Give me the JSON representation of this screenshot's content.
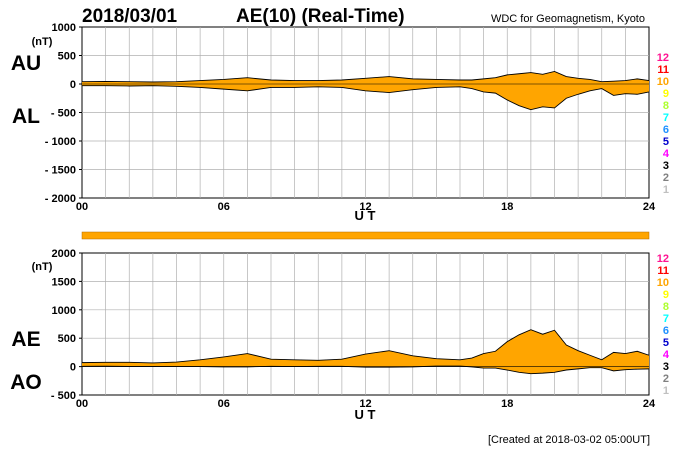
{
  "header": {
    "date": "2018/03/01",
    "title": "AE(10) (Real-Time)",
    "source": "WDC for Geomagnetism, Kyoto"
  },
  "footer": {
    "created": "[Created at 2018-03-02 05:00UT]"
  },
  "chart_data": [
    {
      "type": "area",
      "id": "au_al",
      "labels": {
        "upper": "AU",
        "lower": "AL"
      },
      "unit": "(nT)",
      "xlabel": "U T",
      "xlim": [
        0,
        24
      ],
      "ylim": [
        -2000,
        1000
      ],
      "xticks": [
        0,
        6,
        12,
        18,
        24
      ],
      "xtick_labels": [
        "00",
        "06",
        "12",
        "18",
        "24"
      ],
      "yticks": [
        1000,
        500,
        0,
        -500,
        -1000,
        -1500,
        -2000
      ],
      "ytick_labels": [
        "1000",
        "500",
        "0",
        "- 500",
        "- 1000",
        "- 1500",
        "- 2000"
      ],
      "fill_color": "#ffa500",
      "x": [
        0,
        1,
        2,
        3,
        4,
        5,
        6,
        7,
        8,
        9,
        10,
        11,
        12,
        13,
        14,
        15,
        16,
        16.5,
        17,
        17.5,
        18,
        18.5,
        19,
        19.5,
        20,
        20.5,
        21,
        21.5,
        22,
        22.5,
        23,
        23.5,
        24
      ],
      "series": [
        {
          "name": "AU",
          "values": [
            40,
            45,
            40,
            35,
            40,
            60,
            80,
            110,
            70,
            60,
            60,
            70,
            100,
            130,
            90,
            80,
            70,
            70,
            90,
            110,
            160,
            180,
            200,
            170,
            220,
            130,
            100,
            80,
            40,
            50,
            60,
            90,
            60
          ]
        },
        {
          "name": "AL",
          "values": [
            -30,
            -30,
            -35,
            -30,
            -40,
            -60,
            -90,
            -120,
            -60,
            -60,
            -50,
            -60,
            -120,
            -150,
            -100,
            -60,
            -50,
            -80,
            -140,
            -160,
            -280,
            -380,
            -450,
            -400,
            -420,
            -250,
            -180,
            -120,
            -80,
            -200,
            -170,
            -180,
            -140
          ]
        }
      ]
    },
    {
      "type": "area",
      "id": "ae_ao",
      "labels": {
        "upper": "AE",
        "lower": "AO"
      },
      "unit": "(nT)",
      "xlabel": "U T",
      "xlim": [
        0,
        24
      ],
      "ylim": [
        -500,
        2000
      ],
      "xticks": [
        0,
        6,
        12,
        18,
        24
      ],
      "xtick_labels": [
        "00",
        "06",
        "12",
        "18",
        "24"
      ],
      "yticks": [
        2000,
        1500,
        1000,
        500,
        0,
        -500
      ],
      "ytick_labels": [
        "2000",
        "1500",
        "1000",
        "500",
        "0",
        "- 500"
      ],
      "fill_color": "#ffa500",
      "x": [
        0,
        1,
        2,
        3,
        4,
        5,
        6,
        7,
        8,
        9,
        10,
        11,
        12,
        13,
        14,
        15,
        16,
        16.5,
        17,
        17.5,
        18,
        18.5,
        19,
        19.5,
        20,
        20.5,
        21,
        21.5,
        22,
        22.5,
        23,
        23.5,
        24
      ],
      "series": [
        {
          "name": "AE",
          "values": [
            70,
            75,
            75,
            65,
            80,
            120,
            170,
            230,
            130,
            120,
            110,
            130,
            220,
            280,
            190,
            140,
            120,
            150,
            230,
            270,
            440,
            560,
            650,
            570,
            640,
            380,
            280,
            200,
            120,
            250,
            230,
            270,
            200
          ]
        },
        {
          "name": "AO",
          "values": [
            5,
            8,
            3,
            3,
            0,
            0,
            -5,
            -5,
            5,
            0,
            5,
            5,
            -10,
            -10,
            -5,
            10,
            10,
            -5,
            -25,
            -25,
            -60,
            -100,
            -125,
            -115,
            -100,
            -60,
            -40,
            -20,
            -20,
            -75,
            -55,
            -45,
            -40
          ]
        }
      ]
    }
  ],
  "station_legend": {
    "labels": [
      "12",
      "11",
      "10",
      "9",
      "8",
      "7",
      "6",
      "5",
      "4",
      "3",
      "2",
      "1"
    ],
    "colors": [
      "#ff1493",
      "#ff0000",
      "#ffa500",
      "#ffff00",
      "#adff2f",
      "#00ffff",
      "#1e90ff",
      "#0000cd",
      "#ff00ff",
      "#000000",
      "#808080",
      "#c0c0c0"
    ]
  },
  "station_bar": {
    "color": "#ffa500"
  }
}
